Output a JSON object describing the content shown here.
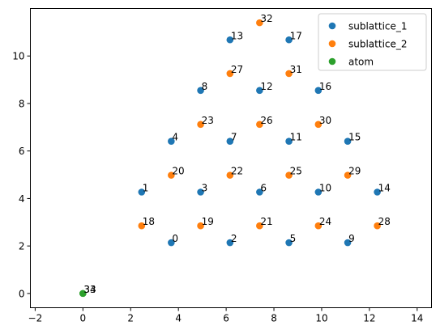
{
  "chart_data": {
    "type": "scatter",
    "title": "",
    "xlabel": "",
    "ylabel": "",
    "xlim": [
      -2.2,
      14.6
    ],
    "ylim": [
      -0.6,
      12.0
    ],
    "x_ticks": [
      -2,
      0,
      2,
      4,
      6,
      8,
      10,
      12,
      14
    ],
    "y_ticks": [
      0,
      2,
      4,
      6,
      8,
      10
    ],
    "grid": false,
    "legend": "top-right",
    "series": [
      {
        "name": "sublattice_1",
        "color": "#1f77b4",
        "points": [
          {
            "label": "0",
            "x": 3.7,
            "y": 2.14
          },
          {
            "label": "1",
            "x": 2.46,
            "y": 4.27
          },
          {
            "label": "2",
            "x": 6.16,
            "y": 2.14
          },
          {
            "label": "3",
            "x": 4.93,
            "y": 4.27
          },
          {
            "label": "4",
            "x": 3.7,
            "y": 6.41
          },
          {
            "label": "5",
            "x": 8.63,
            "y": 2.14
          },
          {
            "label": "6",
            "x": 7.4,
            "y": 4.27
          },
          {
            "label": "7",
            "x": 6.16,
            "y": 6.41
          },
          {
            "label": "8",
            "x": 4.93,
            "y": 8.55
          },
          {
            "label": "9",
            "x": 11.09,
            "y": 2.14
          },
          {
            "label": "10",
            "x": 9.86,
            "y": 4.27
          },
          {
            "label": "11",
            "x": 8.63,
            "y": 6.41
          },
          {
            "label": "12",
            "x": 7.4,
            "y": 8.55
          },
          {
            "label": "13",
            "x": 6.16,
            "y": 10.68
          },
          {
            "label": "14",
            "x": 12.33,
            "y": 4.27
          },
          {
            "label": "15",
            "x": 11.09,
            "y": 6.41
          },
          {
            "label": "16",
            "x": 9.86,
            "y": 8.55
          },
          {
            "label": "17",
            "x": 8.63,
            "y": 10.68
          }
        ]
      },
      {
        "name": "sublattice_2",
        "color": "#ff7f0e",
        "points": [
          {
            "label": "18",
            "x": 2.46,
            "y": 2.85
          },
          {
            "label": "19",
            "x": 4.93,
            "y": 2.85
          },
          {
            "label": "20",
            "x": 3.7,
            "y": 4.98
          },
          {
            "label": "21",
            "x": 7.4,
            "y": 2.85
          },
          {
            "label": "22",
            "x": 6.16,
            "y": 4.98
          },
          {
            "label": "23",
            "x": 4.93,
            "y": 7.12
          },
          {
            "label": "24",
            "x": 9.86,
            "y": 2.85
          },
          {
            "label": "25",
            "x": 8.63,
            "y": 4.98
          },
          {
            "label": "26",
            "x": 7.4,
            "y": 7.12
          },
          {
            "label": "27",
            "x": 6.16,
            "y": 9.26
          },
          {
            "label": "28",
            "x": 12.33,
            "y": 2.85
          },
          {
            "label": "29",
            "x": 11.09,
            "y": 4.98
          },
          {
            "label": "30",
            "x": 9.86,
            "y": 7.12
          },
          {
            "label": "31",
            "x": 8.63,
            "y": 9.26
          },
          {
            "label": "32",
            "x": 7.4,
            "y": 11.4
          }
        ]
      },
      {
        "name": "atom",
        "color": "#2ca02c",
        "points": [
          {
            "label": "33",
            "x": 0.0,
            "y": 0.0
          },
          {
            "label": "34",
            "x": 0.0,
            "y": 0.0
          }
        ]
      }
    ]
  }
}
